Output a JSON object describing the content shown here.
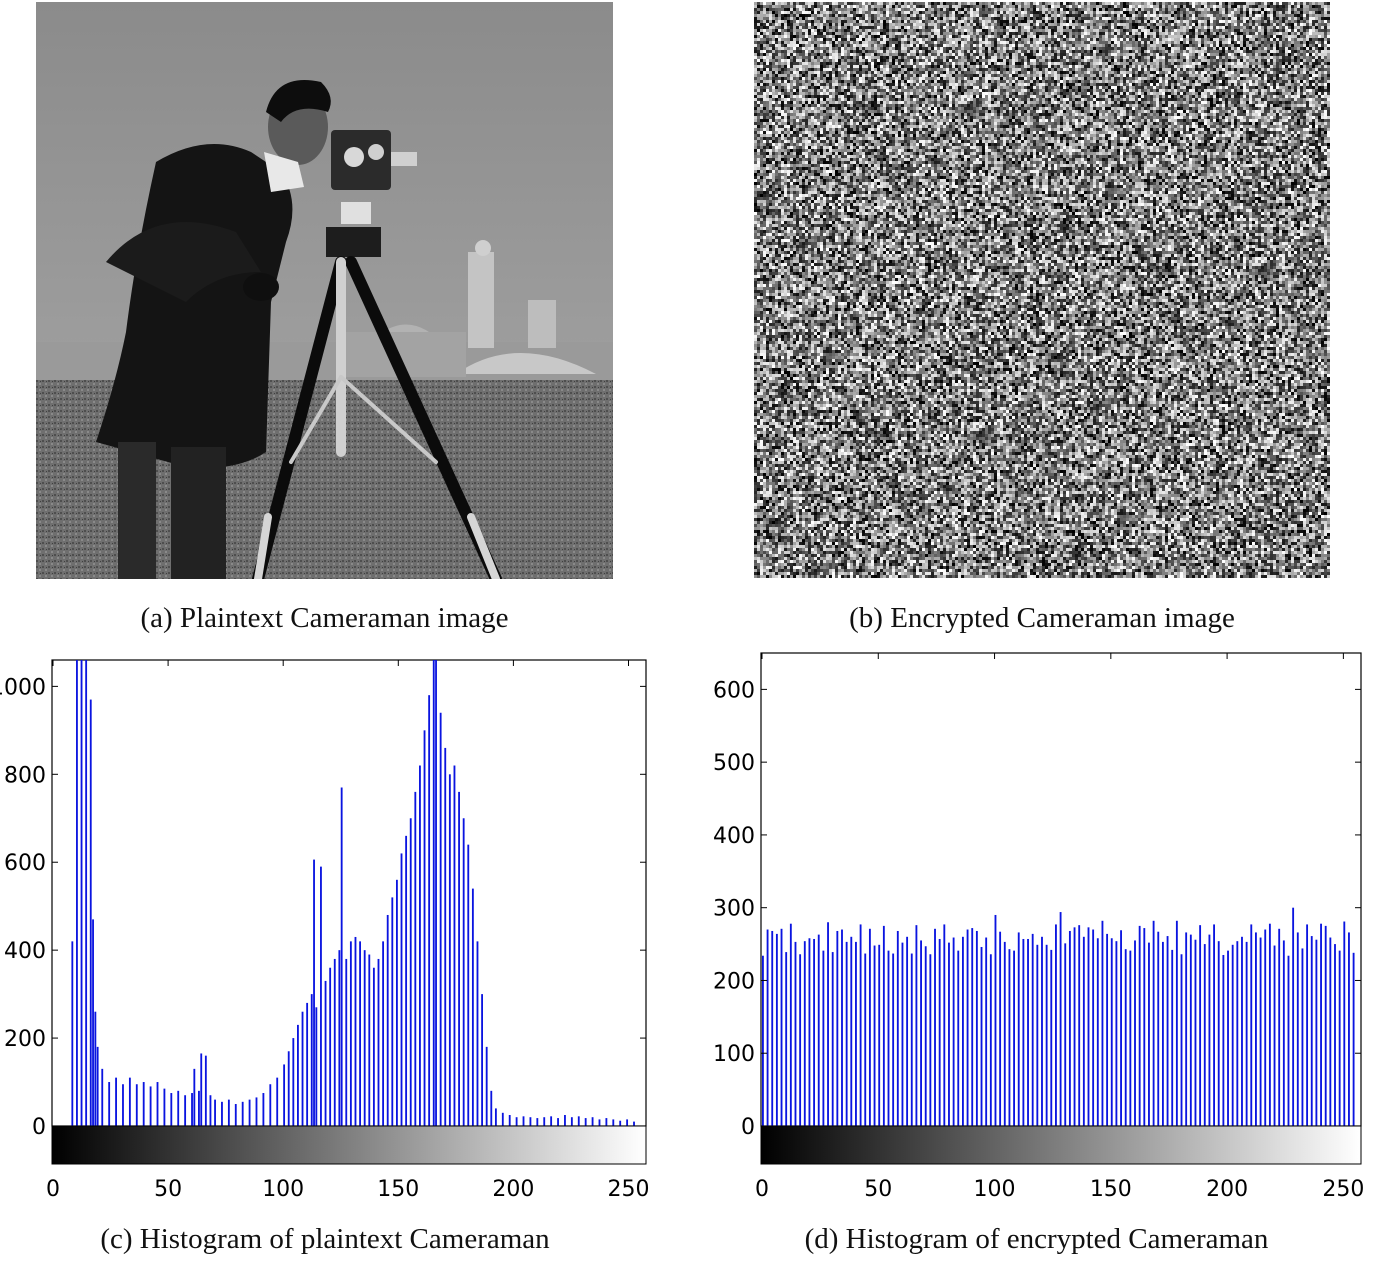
{
  "captions": {
    "a": "(a) Plaintext Cameraman image",
    "b": "(b) Encrypted Cameraman image",
    "c": "(c) Histogram of plaintext Cameraman",
    "d": "(d) Histogram of encrypted Cameraman"
  },
  "colors": {
    "bar": "#0a14e0",
    "axis": "#000000"
  },
  "chart_data": [
    {
      "type": "bar",
      "id": "plaintext-histogram",
      "xlabel": "",
      "ylabel": "",
      "xlim": [
        0,
        255
      ],
      "ylim": [
        0,
        1060
      ],
      "xticks": [
        0,
        50,
        100,
        150,
        200,
        250
      ],
      "yticks": [
        0,
        200,
        400,
        600,
        800,
        1000
      ],
      "colorbar": "grayscale 0-255",
      "bins": [
        [
          8,
          420
        ],
        [
          10,
          1060
        ],
        [
          12,
          1060
        ],
        [
          14,
          1060
        ],
        [
          16,
          970
        ],
        [
          17,
          470
        ],
        [
          18,
          260
        ],
        [
          19,
          180
        ],
        [
          21,
          130
        ],
        [
          24,
          100
        ],
        [
          27,
          110
        ],
        [
          30,
          95
        ],
        [
          33,
          110
        ],
        [
          36,
          95
        ],
        [
          39,
          100
        ],
        [
          42,
          90
        ],
        [
          45,
          100
        ],
        [
          48,
          85
        ],
        [
          51,
          75
        ],
        [
          54,
          80
        ],
        [
          57,
          70
        ],
        [
          60,
          75
        ],
        [
          61,
          130
        ],
        [
          63,
          80
        ],
        [
          64,
          165
        ],
        [
          66,
          160
        ],
        [
          68,
          70
        ],
        [
          70,
          60
        ],
        [
          73,
          55
        ],
        [
          76,
          60
        ],
        [
          79,
          50
        ],
        [
          82,
          55
        ],
        [
          85,
          60
        ],
        [
          88,
          65
        ],
        [
          91,
          75
        ],
        [
          94,
          95
        ],
        [
          97,
          110
        ],
        [
          100,
          140
        ],
        [
          102,
          170
        ],
        [
          104,
          200
        ],
        [
          106,
          230
        ],
        [
          108,
          260
        ],
        [
          110,
          280
        ],
        [
          112,
          300
        ],
        [
          113,
          606
        ],
        [
          114,
          270
        ],
        [
          116,
          590
        ],
        [
          118,
          330
        ],
        [
          120,
          360
        ],
        [
          122,
          380
        ],
        [
          124,
          400
        ],
        [
          125,
          770
        ],
        [
          127,
          380
        ],
        [
          129,
          420
        ],
        [
          131,
          430
        ],
        [
          133,
          420
        ],
        [
          135,
          400
        ],
        [
          137,
          390
        ],
        [
          139,
          360
        ],
        [
          141,
          380
        ],
        [
          143,
          420
        ],
        [
          145,
          480
        ],
        [
          147,
          520
        ],
        [
          149,
          560
        ],
        [
          151,
          620
        ],
        [
          153,
          660
        ],
        [
          155,
          700
        ],
        [
          157,
          760
        ],
        [
          159,
          820
        ],
        [
          161,
          900
        ],
        [
          163,
          980
        ],
        [
          165,
          1060
        ],
        [
          166,
          1060
        ],
        [
          168,
          940
        ],
        [
          170,
          860
        ],
        [
          172,
          800
        ],
        [
          174,
          820
        ],
        [
          176,
          760
        ],
        [
          178,
          700
        ],
        [
          180,
          640
        ],
        [
          182,
          540
        ],
        [
          184,
          420
        ],
        [
          186,
          300
        ],
        [
          188,
          180
        ],
        [
          190,
          80
        ],
        [
          192,
          40
        ],
        [
          195,
          30
        ],
        [
          198,
          25
        ],
        [
          201,
          20
        ],
        [
          204,
          22
        ],
        [
          207,
          20
        ],
        [
          210,
          18
        ],
        [
          213,
          20
        ],
        [
          216,
          22
        ],
        [
          219,
          18
        ],
        [
          222,
          25
        ],
        [
          225,
          20
        ],
        [
          228,
          22
        ],
        [
          231,
          18
        ],
        [
          234,
          20
        ],
        [
          237,
          15
        ],
        [
          240,
          18
        ],
        [
          243,
          15
        ],
        [
          246,
          12
        ],
        [
          249,
          15
        ],
        [
          252,
          10
        ]
      ]
    },
    {
      "type": "bar",
      "id": "encrypted-histogram",
      "xlabel": "",
      "ylabel": "",
      "xlim": [
        0,
        255
      ],
      "ylim": [
        0,
        650
      ],
      "xticks": [
        0,
        50,
        100,
        150,
        200,
        250
      ],
      "yticks": [
        0,
        100,
        200,
        300,
        400,
        500,
        600
      ],
      "colorbar": "grayscale 0-255",
      "mean": 256,
      "spread": 22,
      "highlights": [
        [
          5,
          275
        ],
        [
          12,
          278
        ],
        [
          28,
          280
        ],
        [
          52,
          275
        ],
        [
          66,
          276
        ],
        [
          90,
          272
        ],
        [
          100,
          290
        ],
        [
          115,
          286
        ],
        [
          128,
          294
        ],
        [
          146,
          282
        ],
        [
          168,
          282
        ],
        [
          178,
          282
        ],
        [
          195,
          287
        ],
        [
          217,
          303
        ],
        [
          228,
          300
        ],
        [
          243,
          287
        ],
        [
          250,
          281
        ]
      ]
    }
  ]
}
